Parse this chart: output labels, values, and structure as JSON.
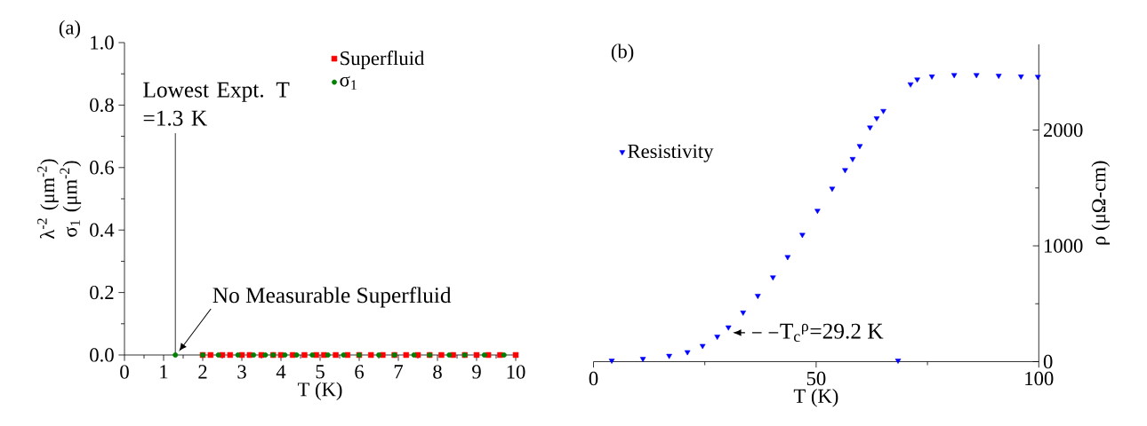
{
  "chart_data": [
    {
      "type": "scatter",
      "title": "(a)",
      "xlabel": "T (K)",
      "ylabel": "λ$^{-2}$ (μm$^{-2}$) σ$_{1}$ (μm$^{-2}$)",
      "xlim": [
        0,
        10
      ],
      "ylim": [
        0,
        1.0
      ],
      "xticks": [
        0,
        1,
        2,
        3,
        4,
        5,
        6,
        7,
        8,
        9,
        10
      ],
      "yticks": [
        {
          "value": 0,
          "label": "0.0"
        },
        0.2,
        0.4,
        0.6,
        0.8,
        {
          "value": 1,
          "label": "1.0"
        }
      ],
      "legend": "top right",
      "series": [
        {
          "name": "Superfluid",
          "color": "#ff0000",
          "marker": "square",
          "x": [
            2.0,
            2.2,
            2.5,
            2.7,
            3.0,
            3.2,
            3.5,
            3.8,
            4.0,
            4.3,
            4.6,
            4.9,
            5.1,
            5.4,
            5.7,
            6.0,
            6.3,
            6.6,
            6.9,
            7.2,
            7.5,
            7.8,
            8.1,
            8.4,
            8.7,
            9.0,
            9.3,
            9.6,
            10.0
          ],
          "values": [
            0,
            0,
            0,
            0,
            0,
            0,
            0,
            0,
            0,
            0,
            0,
            0,
            0,
            0,
            0,
            0,
            0,
            0,
            0,
            0,
            0,
            0,
            0,
            0,
            0,
            0,
            0,
            0,
            0
          ]
        },
        {
          "name": "σ$_{1}$",
          "color": "#008000",
          "marker": "circle",
          "x": [
            1.3,
            2.0,
            2.4,
            2.9,
            3.3,
            3.6,
            3.8,
            4.1,
            4.4,
            4.8,
            5.2,
            5.6,
            6.0,
            6.5,
            6.9,
            7.4,
            7.8,
            8.3,
            8.7,
            9.2,
            9.7
          ],
          "values": [
            0,
            0,
            0,
            0,
            0,
            0,
            0,
            0,
            0,
            0,
            0,
            0,
            0,
            0,
            0,
            0,
            0,
            0,
            0,
            0,
            0
          ]
        }
      ],
      "ref_lines": [
        {
          "axis": "x",
          "value": 1.3,
          "label": "Lowest Expt. T =1.3 K",
          "color": "#000000"
        }
      ],
      "annotations": [
        {
          "text": "No Measurable Superfluid",
          "x": 1.3,
          "y": 0
        }
      ]
    },
    {
      "type": "scatter",
      "title": "(b)",
      "xlabel": "T (K)",
      "ylabel": "ρ (μΩ-cm)",
      "xlim": [
        0,
        100
      ],
      "ylim": [
        0,
        2740
      ],
      "xticks": [
        0,
        50,
        100
      ],
      "yticks": [
        0,
        1000,
        2000
      ],
      "legend": "top left",
      "series": [
        {
          "name": "Resistivity",
          "color": "#0000ff",
          "marker": "triangle",
          "x": [
            4.1,
            11.1,
            17.0,
            21.1,
            24.5,
            27.8,
            30.3,
            33.6,
            36.9,
            40.3,
            43.6,
            46.9,
            50.3,
            53.6,
            56.5,
            58.2,
            59.8,
            62.1,
            63.6,
            65.1,
            68.4,
            71.2,
            72.7,
            76.0,
            81.0,
            86.0,
            91.0,
            96.0,
            99.8
          ],
          "values": [
            10,
            25,
            51,
            83,
            137,
            217,
            297,
            425,
            569,
            729,
            904,
            1096,
            1304,
            1495,
            1655,
            1751,
            1863,
            2023,
            2103,
            2166,
            10,
            2396,
            2438,
            2464,
            2476,
            2476,
            2470,
            2464,
            2461
          ]
        }
      ],
      "annotations": [
        {
          "text": "T$_{c}$$^{ρ}$=29.2 K",
          "x": 30.5,
          "y": 250
        }
      ]
    }
  ]
}
